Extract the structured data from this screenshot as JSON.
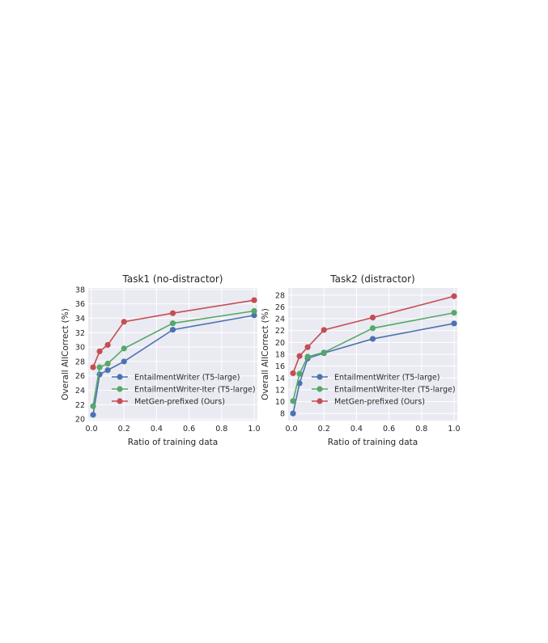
{
  "colors": {
    "plot_background": "#eaeaf2",
    "grid": "#ffffff",
    "series": [
      "#4c72b0",
      "#55a868",
      "#c44e52"
    ]
  },
  "chart_data": [
    {
      "type": "line",
      "title": "Task1 (no-distractor)",
      "xlabel": "Ratio of training data",
      "ylabel": "Overall AllCorrect (%)",
      "xlim": [
        -0.02,
        1.02
      ],
      "ylim": [
        19.8,
        38.2
      ],
      "xticks": [
        0.0,
        0.2,
        0.4,
        0.6,
        0.8,
        1.0
      ],
      "xtick_labels": [
        "0.0",
        "0.2",
        "0.4",
        "0.6",
        "0.8",
        "1.0"
      ],
      "yticks": [
        20,
        22,
        24,
        26,
        28,
        30,
        32,
        34,
        36,
        38
      ],
      "ytick_labels": [
        "20",
        "22",
        "24",
        "26",
        "28",
        "30",
        "32",
        "34",
        "36",
        "38"
      ],
      "grid": true,
      "legend_position": "bottom-right",
      "series": [
        {
          "name": "EntailmentWriter (T5-large)",
          "x": [
            0.01,
            0.05,
            0.1,
            0.2,
            0.5,
            1.0
          ],
          "y": [
            20.6,
            26.2,
            26.8,
            28.0,
            32.4,
            34.4
          ]
        },
        {
          "name": "EntailmentWriter-Iter (T5-large)",
          "x": [
            0.01,
            0.05,
            0.1,
            0.2,
            0.5,
            1.0
          ],
          "y": [
            21.8,
            27.2,
            27.7,
            29.8,
            33.3,
            35.0
          ]
        },
        {
          "name": "MetGen-prefixed (Ours)",
          "x": [
            0.01,
            0.05,
            0.1,
            0.2,
            0.5,
            1.0
          ],
          "y": [
            27.2,
            29.4,
            30.3,
            33.5,
            34.7,
            36.5
          ]
        }
      ]
    },
    {
      "type": "line",
      "title": "Task2 (distractor)",
      "xlabel": "Ratio of training data",
      "ylabel": "Overall AllCorrect (%)",
      "xlim": [
        -0.02,
        1.02
      ],
      "ylim": [
        6.8,
        29.2
      ],
      "xticks": [
        0.0,
        0.2,
        0.4,
        0.6,
        0.8,
        1.0
      ],
      "xtick_labels": [
        "0.0",
        "0.2",
        "0.4",
        "0.6",
        "0.8",
        "1.0"
      ],
      "yticks": [
        8,
        10,
        12,
        14,
        16,
        18,
        20,
        22,
        24,
        26,
        28
      ],
      "ytick_labels": [
        "8",
        "10",
        "12",
        "14",
        "16",
        "18",
        "20",
        "22",
        "24",
        "26",
        "28"
      ],
      "grid": true,
      "legend_position": "bottom-right",
      "series": [
        {
          "name": "EntailmentWriter (T5-large)",
          "x": [
            0.01,
            0.05,
            0.1,
            0.2,
            0.5,
            1.0
          ],
          "y": [
            8.0,
            13.1,
            17.3,
            18.2,
            20.6,
            23.2
          ]
        },
        {
          "name": "EntailmentWriter-Iter (T5-large)",
          "x": [
            0.01,
            0.05,
            0.1,
            0.2,
            0.5,
            1.0
          ],
          "y": [
            10.1,
            14.7,
            17.6,
            18.3,
            22.4,
            25.0
          ]
        },
        {
          "name": "MetGen-prefixed (Ours)",
          "x": [
            0.01,
            0.05,
            0.1,
            0.2,
            0.5,
            1.0
          ],
          "y": [
            14.8,
            17.7,
            19.2,
            22.1,
            24.2,
            27.8
          ]
        }
      ]
    }
  ]
}
